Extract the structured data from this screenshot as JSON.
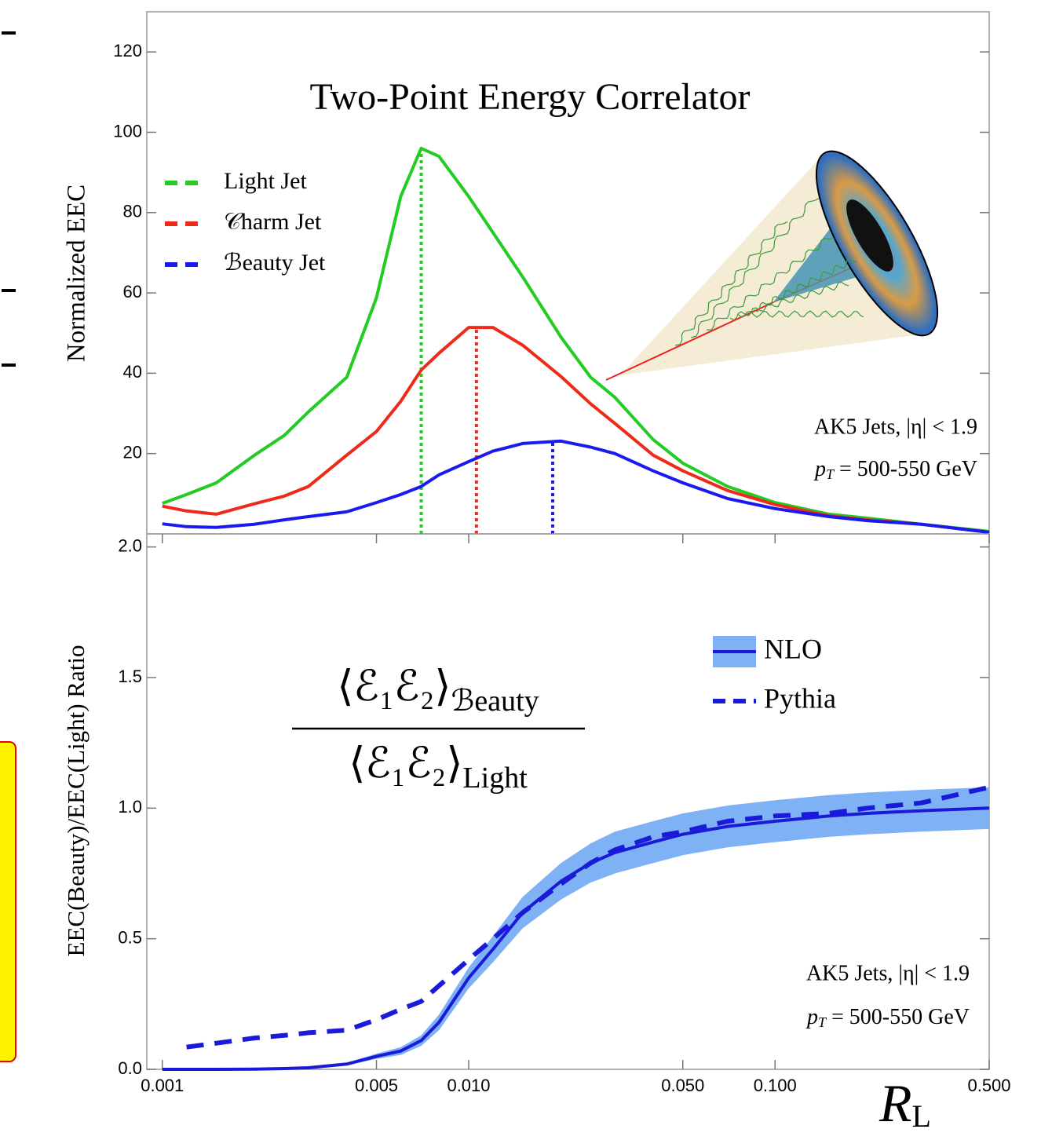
{
  "chart_data": [
    {
      "type": "line",
      "title": "Two-Point Energy Correlator",
      "ylabel": "Normalized EEC",
      "x": [
        0.001,
        0.0012,
        0.0015,
        0.002,
        0.0025,
        0.003,
        0.004,
        0.005,
        0.006,
        0.007,
        0.008,
        0.01,
        0.012,
        0.015,
        0.02,
        0.025,
        0.03,
        0.04,
        0.05,
        0.07,
        0.1,
        0.15,
        0.2,
        0.3,
        0.5
      ],
      "xlim": [
        0.00089,
        0.5
      ],
      "xscale": "log",
      "ylim": [
        0,
        130
      ],
      "yticks": [
        20,
        40,
        60,
        80,
        100,
        120
      ],
      "legend": "upper left",
      "series": [
        {
          "name": "Light Jet",
          "color": "#22cc22",
          "values": [
            7.6,
            9.8,
            12.7,
            19.6,
            24.5,
            30.4,
            39,
            58.8,
            84,
            96,
            94,
            84,
            75,
            64,
            49,
            39,
            34,
            23.5,
            17.6,
            11.8,
            7.8,
            4.9,
            3.9,
            2.4,
            0.6
          ],
          "peak_x": 0.007,
          "peak_y": 96
        },
        {
          "name": "𝒞harm Jet",
          "color": "#ee2a1a",
          "values": [
            6.9,
            5.7,
            4.9,
            7.5,
            9.4,
            11.8,
            19.6,
            25.5,
            33,
            40.8,
            45,
            51.4,
            51.4,
            47,
            39.2,
            32.4,
            27.5,
            19.6,
            15.7,
            10.8,
            7.3,
            4.5,
            3.5,
            2.4,
            0.4
          ],
          "peak_x": 0.0106,
          "peak_y": 51.5
        },
        {
          "name": "ℬeauty Jet",
          "color": "#1a1aee",
          "values": [
            2.5,
            1.8,
            1.6,
            2.4,
            3.5,
            4.3,
            5.5,
            7.8,
            9.8,
            11.8,
            14.7,
            18,
            20.6,
            22.5,
            23.1,
            21.6,
            20,
            15.7,
            12.7,
            8.8,
            6.3,
            4.3,
            3.3,
            2.4,
            0.4
          ],
          "peak_x": 0.0188,
          "peak_y": 23
        }
      ],
      "annotation": {
        "line1": "AK5 Jets, |η| < 1.9",
        "p": "p",
        "sub": "T",
        "rest": " = 500-550 GeV"
      }
    },
    {
      "type": "line",
      "ylabel": "EEC(Beauty)/EEC(Light) Ratio",
      "formula": {
        "numerator": "⟨ℰ₁ℰ₂⟩",
        "numerator_sub": "ℬeauty",
        "denominator": "⟨ℰ₁ℰ₂⟩",
        "denominator_sub": "Light"
      },
      "xlabel": {
        "main": "R",
        "sub": "L"
      },
      "x": [
        0.001,
        0.0012,
        0.0015,
        0.002,
        0.0025,
        0.003,
        0.004,
        0.005,
        0.006,
        0.007,
        0.008,
        0.01,
        0.012,
        0.015,
        0.02,
        0.025,
        0.03,
        0.04,
        0.05,
        0.07,
        0.1,
        0.15,
        0.2,
        0.3,
        0.5
      ],
      "xlim": [
        0.00089,
        0.5
      ],
      "xscale": "log",
      "xticks": [
        0.001,
        0.005,
        {
          "value": 0.01,
          "label": "0.010"
        },
        {
          "value": 0.05,
          "label": "0.050"
        },
        {
          "value": 0.1,
          "label": "0.100"
        },
        {
          "value": 0.5,
          "label": "0.500"
        }
      ],
      "ylim": [
        0,
        2.05
      ],
      "yticks": [
        {
          "value": 0,
          "label": "0.0"
        },
        {
          "value": 0.5,
          "label": "0.5"
        },
        {
          "value": 1,
          "label": "1.0"
        },
        {
          "value": 1.5,
          "label": "1.5"
        },
        {
          "value": 2,
          "label": "2.0"
        }
      ],
      "legend": "upper right",
      "series": [
        {
          "name": "NLO",
          "color": "#1a1ad8",
          "style": "solid",
          "band_color": "#7fb2f5",
          "values": [
            0,
            0,
            0,
            0.001,
            0.003,
            0.006,
            0.02,
            0.05,
            0.07,
            0.11,
            0.18,
            0.35,
            0.46,
            0.6,
            0.72,
            0.79,
            0.83,
            0.87,
            0.9,
            0.93,
            0.95,
            0.97,
            0.98,
            0.99,
            1.0
          ],
          "band_lower": [
            0,
            0,
            0,
            0,
            0.001,
            0.003,
            0.015,
            0.04,
            0.055,
            0.09,
            0.15,
            0.31,
            0.41,
            0.54,
            0.65,
            0.715,
            0.75,
            0.79,
            0.82,
            0.85,
            0.87,
            0.89,
            0.9,
            0.91,
            0.92
          ],
          "band_upper": [
            0,
            0,
            0,
            0.002,
            0.005,
            0.009,
            0.025,
            0.06,
            0.085,
            0.13,
            0.21,
            0.39,
            0.51,
            0.66,
            0.79,
            0.865,
            0.91,
            0.95,
            0.98,
            1.01,
            1.03,
            1.05,
            1.06,
            1.07,
            1.08
          ]
        },
        {
          "name": "Pythia",
          "color": "#1a1ad8",
          "style": "dashed",
          "values": [
            null,
            0.085,
            0.1,
            0.12,
            0.13,
            0.14,
            0.15,
            0.19,
            0.23,
            0.26,
            0.32,
            0.42,
            0.5,
            0.6,
            0.71,
            0.79,
            0.84,
            0.89,
            0.91,
            0.95,
            0.97,
            0.98,
            1.0,
            1.02,
            1.08
          ]
        }
      ],
      "annotation": {
        "line1": "AK5 Jets, |η| < 1.9",
        "p": "p",
        "sub": "T",
        "rest": " = 500-550 GeV"
      }
    }
  ]
}
